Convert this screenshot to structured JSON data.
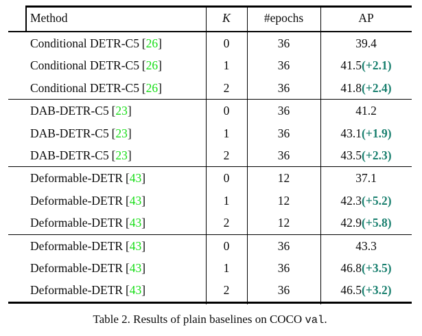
{
  "table": {
    "columns": [
      "Method",
      "K",
      "#epochs",
      "AP"
    ],
    "bracket_open": "[",
    "bracket_close": "]",
    "groups": [
      {
        "rows": [
          {
            "method": "Conditional DETR-C5",
            "cite": "26",
            "k": "0",
            "epochs": "36",
            "ap": "39.4",
            "delta": ""
          },
          {
            "method": "Conditional DETR-C5",
            "cite": "26",
            "k": "1",
            "epochs": "36",
            "ap": "41.5",
            "delta": "(+2.1)"
          },
          {
            "method": "Conditional DETR-C5",
            "cite": "26",
            "k": "2",
            "epochs": "36",
            "ap": "41.8",
            "delta": "(+2.4)"
          }
        ]
      },
      {
        "rows": [
          {
            "method": "DAB-DETR-C5",
            "cite": "23",
            "k": "0",
            "epochs": "36",
            "ap": "41.2",
            "delta": ""
          },
          {
            "method": "DAB-DETR-C5",
            "cite": "23",
            "k": "1",
            "epochs": "36",
            "ap": "43.1",
            "delta": "(+1.9)"
          },
          {
            "method": "DAB-DETR-C5",
            "cite": "23",
            "k": "2",
            "epochs": "36",
            "ap": "43.5",
            "delta": "(+2.3)"
          }
        ]
      },
      {
        "rows": [
          {
            "method": "Deformable-DETR",
            "cite": "43",
            "k": "0",
            "epochs": "12",
            "ap": "37.1",
            "delta": ""
          },
          {
            "method": "Deformable-DETR",
            "cite": "43",
            "k": "1",
            "epochs": "12",
            "ap": "42.3",
            "delta": "(+5.2)"
          },
          {
            "method": "Deformable-DETR",
            "cite": "43",
            "k": "2",
            "epochs": "12",
            "ap": "42.9",
            "delta": "(+5.8)"
          }
        ]
      },
      {
        "rows": [
          {
            "method": "Deformable-DETR",
            "cite": "43",
            "k": "0",
            "epochs": "36",
            "ap": "43.3",
            "delta": ""
          },
          {
            "method": "Deformable-DETR",
            "cite": "43",
            "k": "1",
            "epochs": "36",
            "ap": "46.8",
            "delta": "(+3.5)"
          },
          {
            "method": "Deformable-DETR",
            "cite": "43",
            "k": "2",
            "epochs": "36",
            "ap": "46.5",
            "delta": "(+3.2)"
          }
        ]
      }
    ]
  },
  "caption": {
    "prefix": "Table 2. Results of plain baselines on COCO ",
    "code": "val",
    "suffix": "."
  },
  "colors": {
    "citation_green": "#15dd15",
    "delta_teal": "#187f6e",
    "rule_black": "#000000"
  }
}
